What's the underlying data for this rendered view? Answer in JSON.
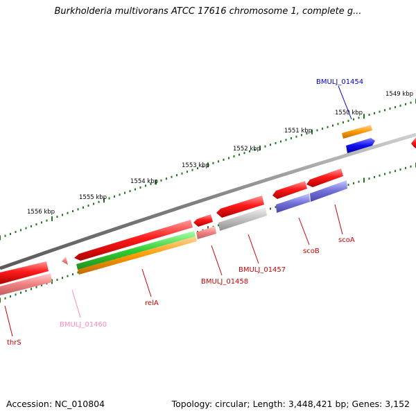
{
  "title": "Burkholderia multivorans ATCC 17616 chromosome 1, complete g...",
  "footer": {
    "accession": "Accession: NC_010804",
    "topology": "Topology: circular; Length: 3,448,421 bp; Genes: 3,152"
  },
  "scale_labels": [
    "1549 kbp",
    "1550 kbp",
    "1551 kbp",
    "1552 kbp",
    "1553 kbp",
    "1554 kbp",
    "1555 kbp",
    "1556 kbp"
  ],
  "gene_labels": [
    {
      "text": "BMULJ_01454",
      "color": "#0000cc"
    },
    {
      "text": "scoA",
      "color": "#cc0000"
    },
    {
      "text": "scoB",
      "color": "#cc0000"
    },
    {
      "text": "BMULJ_01457",
      "color": "#cc0000"
    },
    {
      "text": "BMULJ_01458",
      "color": "#cc0000"
    },
    {
      "text": "relA",
      "color": "#cc0000"
    },
    {
      "text": "BMULJ_01460",
      "color": "#ff88bb"
    },
    {
      "text": "thrS",
      "color": "#cc0000"
    }
  ],
  "colors": {
    "backbone": "#808080",
    "tick": "#1a7a1a",
    "cds_red": "#ff1a1a",
    "cds_pink": "#f08080",
    "cds_purple": "#7070d8",
    "cds_gray": "#c0c0c0",
    "cds_green": "#33cc33",
    "cds_orange": "#ff9900",
    "cds_blue": "#1010ee"
  }
}
